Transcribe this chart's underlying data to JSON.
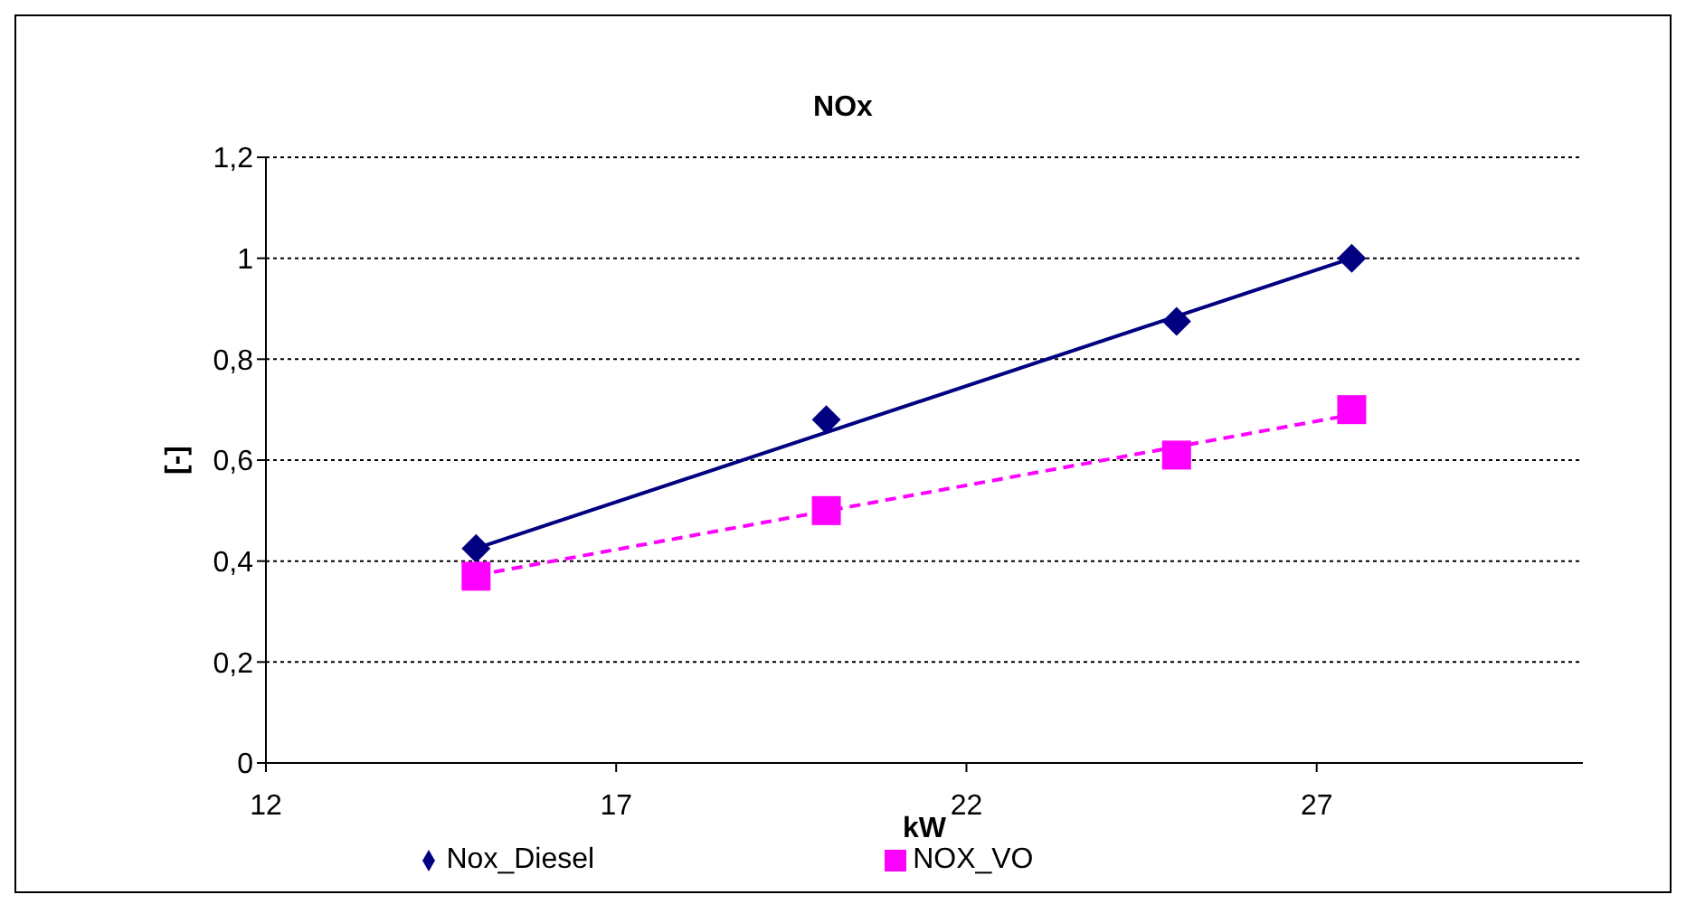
{
  "chart_data": {
    "type": "scatter",
    "title": "NOx",
    "xlabel": "kW",
    "ylabel": "[-]",
    "xlim": [
      12,
      30.8
    ],
    "xticks": [
      12,
      17,
      22,
      27
    ],
    "ylim": [
      0,
      1.2
    ],
    "yticks": [
      0,
      {
        "value": 0.2,
        "label": "0,2"
      },
      {
        "value": 0.4,
        "label": "0,4"
      },
      {
        "value": 0.6,
        "label": "0,6"
      },
      {
        "value": 0.8,
        "label": "0,8"
      },
      1,
      {
        "value": 1.2,
        "label": "1,2"
      }
    ],
    "grid": "y",
    "legend": "bottom",
    "series": [
      {
        "name": "Nox_Diesel",
        "marker": "diamond",
        "color": "#000080",
        "x": [
          15,
          20,
          25,
          27.5
        ],
        "values": [
          0.425,
          0.68,
          0.875,
          1.0
        ]
      },
      {
        "name": "NOX_VO",
        "marker": "square",
        "color": "#ff00ff",
        "x": [
          15,
          20,
          25,
          27.5
        ],
        "values": [
          0.37,
          0.5,
          0.61,
          0.7
        ]
      },
      {
        "type": "line",
        "color": "#000080",
        "line_style": "solid",
        "marker": "none",
        "x": [
          15,
          27.5
        ],
        "values": [
          0.425,
          1.0
        ]
      },
      {
        "type": "line",
        "color": "#ff00ff",
        "line_style": "dashed",
        "marker": "none",
        "x": [
          15,
          27.5
        ],
        "values": [
          0.372,
          0.69
        ]
      }
    ]
  }
}
